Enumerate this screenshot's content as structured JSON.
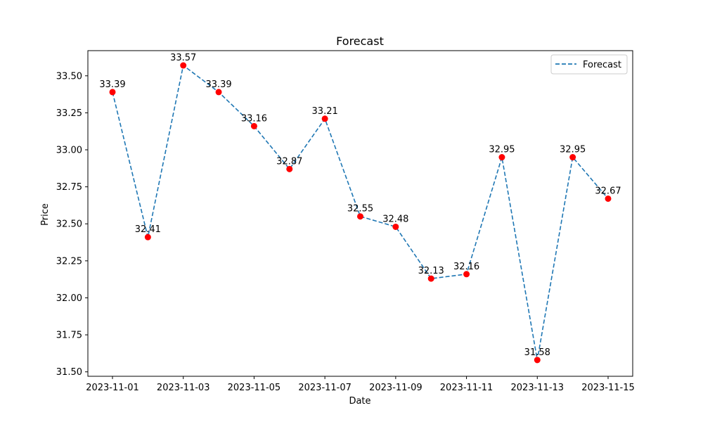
{
  "chart_data": {
    "type": "line",
    "title": "Forecast",
    "xlabel": "Date",
    "ylabel": "Price",
    "x": [
      "2023-11-01",
      "2023-11-02",
      "2023-11-03",
      "2023-11-04",
      "2023-11-05",
      "2023-11-06",
      "2023-11-07",
      "2023-11-08",
      "2023-11-09",
      "2023-11-10",
      "2023-11-11",
      "2023-11-12",
      "2023-11-13",
      "2023-11-14",
      "2023-11-15"
    ],
    "series": [
      {
        "name": "Forecast",
        "values": [
          33.39,
          32.41,
          33.57,
          33.39,
          33.16,
          32.87,
          33.21,
          32.55,
          32.48,
          32.13,
          32.16,
          32.95,
          31.58,
          32.95,
          32.67
        ],
        "data_labels": [
          "33.39",
          "32.41",
          "33.57",
          "33.39",
          "33.16",
          "32.87",
          "33.21",
          "32.55",
          "32.48",
          "32.13",
          "32.16",
          "32.95",
          "31.58",
          "32.95",
          "32.67"
        ]
      }
    ],
    "x_ticks": [
      "2023-11-01",
      "2023-11-03",
      "2023-11-05",
      "2023-11-07",
      "2023-11-09",
      "2023-11-11",
      "2023-11-13",
      "2023-11-15"
    ],
    "y_ticks": [
      "31.50",
      "31.75",
      "32.00",
      "32.25",
      "32.50",
      "32.75",
      "33.00",
      "33.25",
      "33.50"
    ],
    "ylim": [
      31.47,
      33.67
    ],
    "grid": false,
    "legend": "top-right",
    "colors": {
      "line": "#1f77b4",
      "marker": "#ff0000"
    }
  }
}
